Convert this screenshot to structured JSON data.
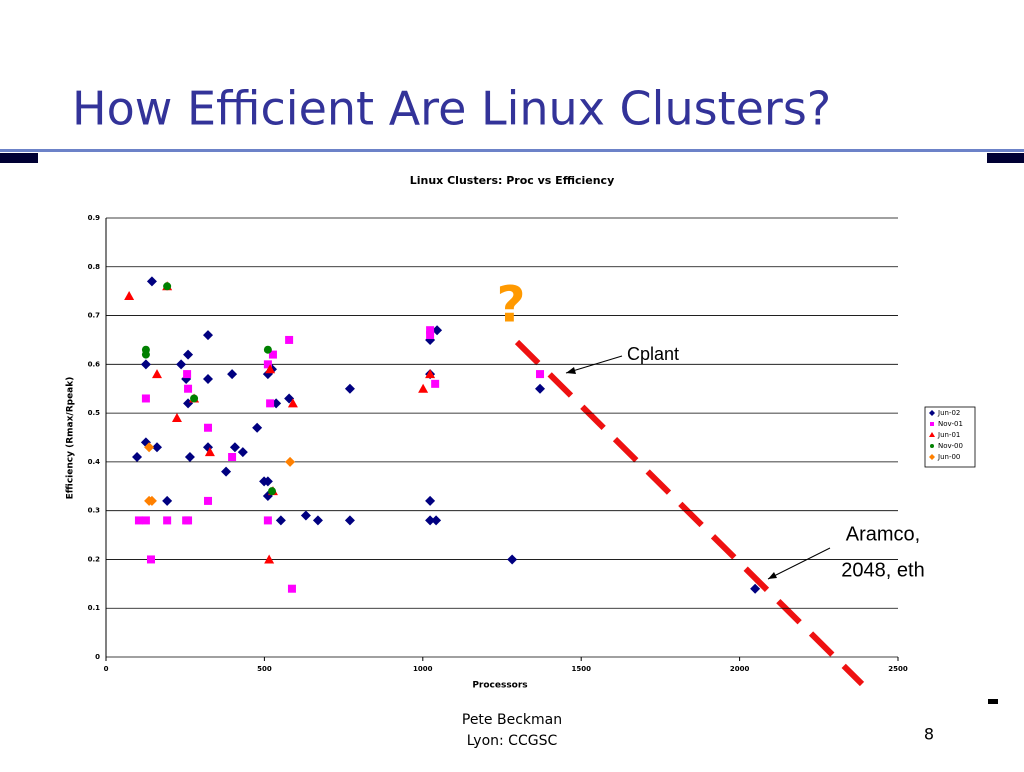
{
  "slide": {
    "title": "How Efficient Are Linux Clusters?",
    "footer": [
      "Pete Beckman",
      "Lyon:  CCGSC"
    ],
    "page": "8"
  },
  "chart_data": {
    "type": "scatter",
    "title": "Linux Clusters: Proc vs Efficiency",
    "x_label": "Processors",
    "y_label": "Efficiency (Rmax/Rpeak)",
    "xlim": [
      0,
      2500
    ],
    "xticks": [
      0,
      500,
      1000,
      1500,
      2000,
      2500
    ],
    "ylim": [
      0,
      0.9
    ],
    "yticks": [
      0,
      0.1,
      0.2,
      0.3,
      0.4,
      0.5,
      0.6,
      0.7,
      0.8,
      0.9
    ],
    "grid": true,
    "legend": "right",
    "series": [
      {
        "name": "Jun-02",
        "color": "#000080",
        "marker": "diamond",
        "x": [
          145,
          126,
          98,
          126,
          161,
          193,
          237,
          253,
          259,
          259,
          265,
          322,
          322,
          322,
          398,
          407,
          432,
          379,
          477,
          499,
          511,
          511,
          511,
          524,
          537,
          552,
          578,
          631,
          669,
          770,
          770,
          1023,
          1045,
          1023,
          1023,
          1023,
          1042,
          1282,
          1370,
          2049
        ],
        "values": [
          0.77,
          0.6,
          0.41,
          0.44,
          0.43,
          0.32,
          0.6,
          0.57,
          0.62,
          0.52,
          0.41,
          0.66,
          0.57,
          0.43,
          0.58,
          0.43,
          0.42,
          0.38,
          0.47,
          0.36,
          0.36,
          0.33,
          0.58,
          0.59,
          0.52,
          0.28,
          0.53,
          0.29,
          0.28,
          0.55,
          0.28,
          0.65,
          0.67,
          0.58,
          0.32,
          0.28,
          0.28,
          0.2,
          0.55,
          0.14
        ]
      },
      {
        "name": "Nov-01",
        "color": "#ff00ff",
        "marker": "square",
        "x": [
          104,
          126,
          126,
          142,
          193,
          253,
          256,
          259,
          259,
          322,
          322,
          398,
          511,
          518,
          511,
          527,
          578,
          587,
          1023,
          1023,
          1039,
          1370
        ],
        "values": [
          0.28,
          0.53,
          0.28,
          0.2,
          0.28,
          0.28,
          0.58,
          0.28,
          0.55,
          0.32,
          0.47,
          0.41,
          0.6,
          0.52,
          0.28,
          0.62,
          0.65,
          0.14,
          0.67,
          0.66,
          0.56,
          0.58
        ]
      },
      {
        "name": "Jun-01",
        "color": "#ff0000",
        "marker": "triangle",
        "x": [
          73,
          193,
          161,
          224,
          278,
          328,
          515,
          518,
          527,
          590,
          1001,
          1023
        ],
        "values": [
          0.74,
          0.76,
          0.58,
          0.49,
          0.53,
          0.42,
          0.2,
          0.59,
          0.34,
          0.52,
          0.55,
          0.58
        ]
      },
      {
        "name": "Nov-00",
        "color": "#008000",
        "marker": "circle",
        "x": [
          126,
          126,
          193,
          278,
          511,
          524
        ],
        "values": [
          0.63,
          0.62,
          0.76,
          0.53,
          0.63,
          0.34
        ]
      },
      {
        "name": "Jun-00",
        "color": "#ff8000",
        "marker": "diamond",
        "x": [
          136,
          145,
          136,
          581
        ],
        "values": [
          0.32,
          0.32,
          0.43,
          0.4
        ]
      }
    ],
    "annotations": [
      "?",
      "Cplant",
      "Aramco,",
      "2048, eth"
    ]
  }
}
